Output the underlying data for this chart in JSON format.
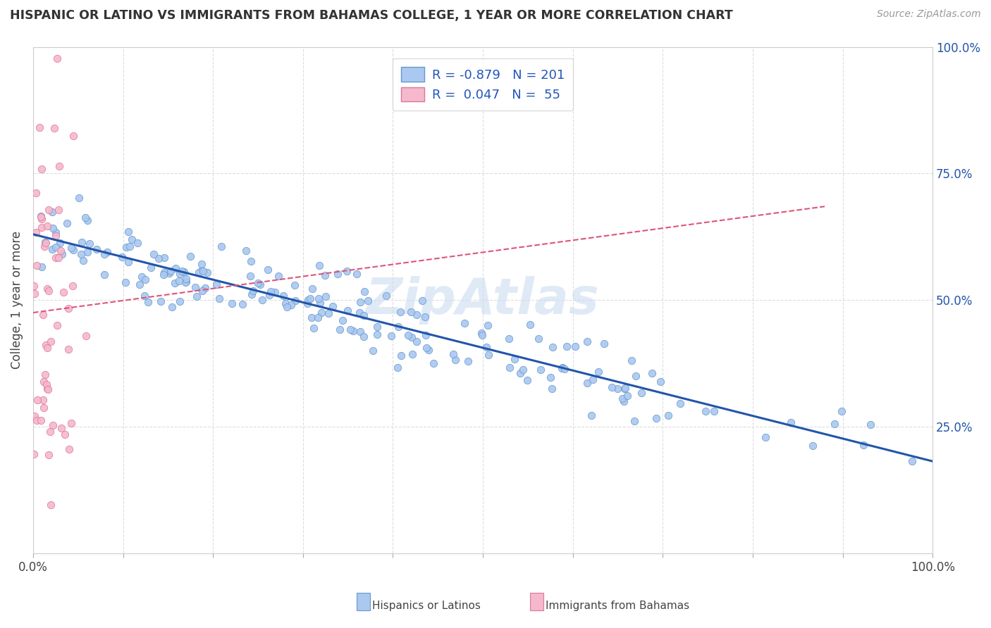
{
  "title": "HISPANIC OR LATINO VS IMMIGRANTS FROM BAHAMAS COLLEGE, 1 YEAR OR MORE CORRELATION CHART",
  "source_text": "Source: ZipAtlas.com",
  "ylabel": "College, 1 year or more",
  "watermark": "ZipAtlas",
  "background_color": "#ffffff",
  "grid_color": "#dddddd",
  "series1_color": "#aac8f0",
  "series1_edge_color": "#6699cc",
  "series1_line_color": "#2255aa",
  "series2_color": "#f5b8cc",
  "series2_edge_color": "#dd7799",
  "series2_line_color": "#dd5577",
  "R1": -0.879,
  "N1": 201,
  "R2": 0.047,
  "N2": 55,
  "xlim": [
    0,
    1
  ],
  "ylim": [
    0,
    1
  ],
  "ytick_positions": [
    0.25,
    0.5,
    0.75,
    1.0
  ],
  "ytick_labels": [
    "25.0%",
    "50.0%",
    "75.0%",
    "100.0%"
  ],
  "xtick_show": [
    0.0,
    1.0
  ],
  "xtick_labels_show": [
    "0.0%",
    "100.0%"
  ]
}
